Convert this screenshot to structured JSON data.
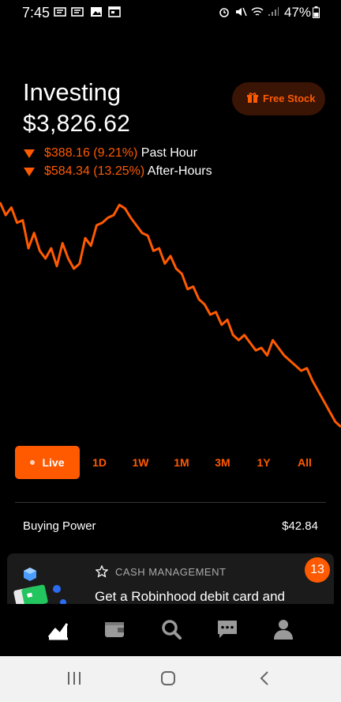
{
  "status_bar": {
    "time": "7:45",
    "battery": "47%"
  },
  "header": {
    "title": "Investing",
    "balance": "$3,826.62",
    "changes": [
      {
        "value": "$388.16 (9.21%)",
        "label": "Past Hour"
      },
      {
        "value": "$584.34 (13.25%)",
        "label": "After-Hours"
      }
    ],
    "free_stock_label": "Free Stock"
  },
  "colors": {
    "accent": "#ff5a00",
    "background": "#000000"
  },
  "chart_data": {
    "type": "line",
    "x": [
      0,
      1,
      2,
      3,
      4,
      5,
      6,
      7,
      8,
      9,
      10,
      11,
      12,
      13,
      14,
      15,
      16,
      17,
      18,
      19,
      20,
      21,
      22,
      23,
      24,
      25,
      26,
      27,
      28,
      29,
      30,
      31,
      32,
      33,
      34,
      35,
      36,
      37,
      38,
      39,
      40,
      41,
      42,
      43,
      44,
      45,
      46,
      47,
      48,
      49,
      50,
      51,
      52,
      53,
      54,
      55,
      56,
      57,
      58,
      59,
      60
    ],
    "values": [
      3990,
      3965,
      3980,
      3950,
      3955,
      3900,
      3930,
      3895,
      3880,
      3900,
      3865,
      3910,
      3880,
      3860,
      3870,
      3920,
      3905,
      3945,
      3950,
      3960,
      3965,
      3985,
      3978,
      3960,
      3945,
      3930,
      3925,
      3895,
      3900,
      3870,
      3885,
      3860,
      3850,
      3820,
      3825,
      3800,
      3790,
      3770,
      3775,
      3750,
      3760,
      3730,
      3720,
      3730,
      3715,
      3700,
      3705,
      3690,
      3720,
      3705,
      3690,
      3680,
      3670,
      3660,
      3665,
      3640,
      3620,
      3600,
      3580,
      3560,
      3550
    ],
    "series_color": "#ff5a00",
    "grid": false,
    "ranges": [
      "Live",
      "1D",
      "1W",
      "1M",
      "3M",
      "1Y",
      "All"
    ],
    "selected_range": "Live"
  },
  "buying_power": {
    "label": "Buying Power",
    "value": "$42.84"
  },
  "card": {
    "eyebrow": "CASH MANAGEMENT",
    "title": "Get a Robinhood debit card and",
    "badge": "13"
  },
  "bottom_nav": {
    "items": [
      {
        "icon": "chart-icon",
        "active": true
      },
      {
        "icon": "wallet-icon",
        "active": false
      },
      {
        "icon": "search-icon",
        "active": false
      },
      {
        "icon": "messages-icon",
        "active": false
      },
      {
        "icon": "account-icon",
        "active": false
      }
    ]
  }
}
